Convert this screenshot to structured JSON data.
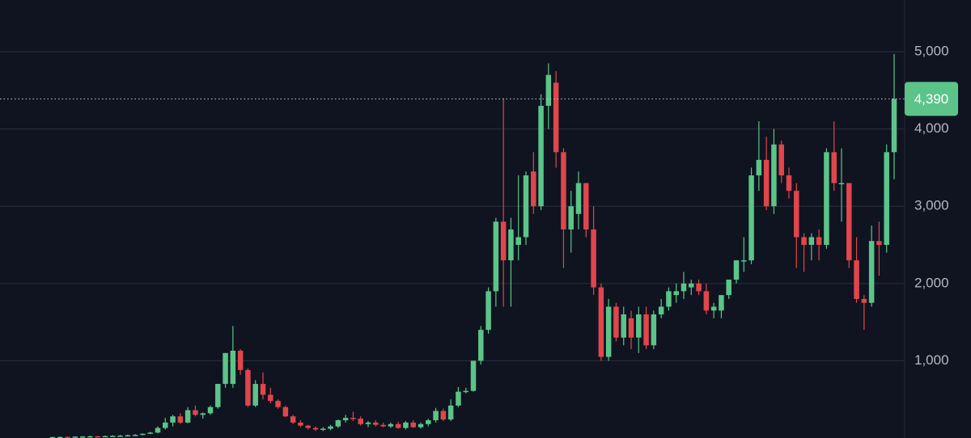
{
  "chart_data": {
    "type": "candlestick",
    "ylim": [
      0,
      5670
    ],
    "yticks": [
      {
        "value": 1000,
        "label": "1,000"
      },
      {
        "value": 2000,
        "label": "2,000"
      },
      {
        "value": 3000,
        "label": "3,000"
      },
      {
        "value": 4000,
        "label": "4,000"
      },
      {
        "value": 5000,
        "label": "5,000"
      }
    ],
    "grid": true,
    "up_color": "#5cc489",
    "down_color": "#e0464c",
    "last_price": {
      "value": 4390,
      "label": "4,390"
    },
    "values": [
      [
        10,
        15,
        8,
        12
      ],
      [
        12,
        18,
        10,
        14
      ],
      [
        14,
        20,
        12,
        13
      ],
      [
        13,
        22,
        12,
        18
      ],
      [
        18,
        25,
        15,
        20
      ],
      [
        20,
        30,
        18,
        22
      ],
      [
        22,
        28,
        18,
        20
      ],
      [
        20,
        30,
        18,
        25
      ],
      [
        25,
        35,
        22,
        28
      ],
      [
        28,
        40,
        25,
        30
      ],
      [
        30,
        45,
        26,
        35
      ],
      [
        35,
        50,
        30,
        40
      ],
      [
        40,
        60,
        35,
        55
      ],
      [
        55,
        80,
        50,
        70
      ],
      [
        70,
        150,
        60,
        130
      ],
      [
        130,
        260,
        110,
        200
      ],
      [
        200,
        300,
        150,
        280
      ],
      [
        280,
        320,
        180,
        200
      ],
      [
        200,
        400,
        190,
        360
      ],
      [
        360,
        420,
        280,
        300
      ],
      [
        300,
        330,
        250,
        320
      ],
      [
        320,
        420,
        300,
        400
      ],
      [
        400,
        700,
        380,
        700
      ],
      [
        700,
        1100,
        650,
        1100
      ],
      [
        700,
        1450,
        650,
        1130
      ],
      [
        1130,
        1150,
        820,
        880
      ],
      [
        880,
        900,
        400,
        420
      ],
      [
        420,
        750,
        400,
        700
      ],
      [
        700,
        850,
        500,
        560
      ],
      [
        560,
        650,
        450,
        480
      ],
      [
        480,
        500,
        380,
        400
      ],
      [
        400,
        420,
        270,
        280
      ],
      [
        280,
        300,
        180,
        200
      ],
      [
        200,
        230,
        140,
        160
      ],
      [
        160,
        170,
        110,
        130
      ],
      [
        130,
        150,
        90,
        110
      ],
      [
        110,
        140,
        90,
        120
      ],
      [
        120,
        170,
        100,
        150
      ],
      [
        150,
        240,
        130,
        230
      ],
      [
        230,
        300,
        200,
        260
      ],
      [
        260,
        340,
        220,
        250
      ],
      [
        250,
        280,
        160,
        180
      ],
      [
        180,
        220,
        140,
        200
      ],
      [
        200,
        230,
        150,
        170
      ],
      [
        170,
        200,
        140,
        150
      ],
      [
        150,
        200,
        130,
        180
      ],
      [
        180,
        210,
        120,
        130
      ],
      [
        130,
        220,
        110,
        200
      ],
      [
        200,
        230,
        130,
        140
      ],
      [
        140,
        200,
        120,
        180
      ],
      [
        180,
        250,
        150,
        230
      ],
      [
        230,
        390,
        200,
        350
      ],
      [
        350,
        380,
        220,
        240
      ],
      [
        240,
        500,
        220,
        420
      ],
      [
        420,
        660,
        400,
        600
      ],
      [
        600,
        650,
        580,
        610
      ],
      [
        610,
        1000,
        600,
        1000
      ],
      [
        1000,
        1450,
        950,
        1400
      ],
      [
        1400,
        1950,
        1350,
        1900
      ],
      [
        1900,
        2850,
        1700,
        2800
      ],
      [
        2800,
        4400,
        1700,
        2300
      ],
      [
        2300,
        2850,
        1700,
        2700
      ],
      [
        2500,
        3400,
        2300,
        2600
      ],
      [
        2600,
        3450,
        2500,
        3400
      ],
      [
        3450,
        3700,
        2900,
        3000
      ],
      [
        3000,
        4450,
        2950,
        4300
      ],
      [
        4300,
        4850,
        4000,
        4700
      ],
      [
        4600,
        4750,
        3500,
        3700
      ],
      [
        3700,
        3750,
        2200,
        2700
      ],
      [
        2700,
        3200,
        2400,
        3000
      ],
      [
        2900,
        3450,
        2700,
        3300
      ],
      [
        3300,
        3300,
        2600,
        2700
      ],
      [
        2700,
        3000,
        1850,
        1950
      ],
      [
        1950,
        2000,
        1000,
        1050
      ],
      [
        1050,
        1800,
        1000,
        1700
      ],
      [
        1700,
        1750,
        1250,
        1300
      ],
      [
        1300,
        1700,
        1200,
        1600
      ],
      [
        1550,
        1650,
        1150,
        1300
      ],
      [
        1300,
        1700,
        1100,
        1600
      ],
      [
        1600,
        1700,
        1150,
        1200
      ],
      [
        1200,
        1650,
        1150,
        1600
      ],
      [
        1600,
        1800,
        1550,
        1700
      ],
      [
        1700,
        1950,
        1650,
        1900
      ],
      [
        1850,
        2000,
        1750,
        1900
      ],
      [
        1900,
        2150,
        1800,
        2000
      ],
      [
        1950,
        2050,
        1850,
        2000
      ],
      [
        2000,
        2050,
        1850,
        1900
      ],
      [
        1900,
        2000,
        1600,
        1650
      ],
      [
        1650,
        1750,
        1550,
        1700
      ],
      [
        1650,
        1850,
        1550,
        1850
      ],
      [
        1850,
        2050,
        1800,
        2050
      ],
      [
        2050,
        2300,
        2000,
        2300
      ],
      [
        2300,
        2600,
        2150,
        2300
      ],
      [
        2300,
        3500,
        2250,
        3400
      ],
      [
        3400,
        4100,
        3200,
        3600
      ],
      [
        3600,
        3900,
        2950,
        3000
      ],
      [
        3000,
        4000,
        2900,
        3800
      ],
      [
        3800,
        3850,
        3300,
        3400
      ],
      [
        3400,
        3500,
        3100,
        3200
      ],
      [
        3200,
        3300,
        2200,
        2600
      ],
      [
        2600,
        2650,
        2150,
        2500
      ],
      [
        2500,
        2650,
        2300,
        2600
      ],
      [
        2600,
        2700,
        2300,
        2500
      ],
      [
        2500,
        3750,
        2450,
        3700
      ],
      [
        3700,
        4100,
        3200,
        3300
      ],
      [
        3300,
        3750,
        2800,
        3300
      ],
      [
        3300,
        3300,
        2200,
        2300
      ],
      [
        2300,
        2600,
        1750,
        1800
      ],
      [
        1800,
        1850,
        1400,
        1750
      ],
      [
        1750,
        2750,
        1700,
        2550
      ],
      [
        2550,
        2800,
        2100,
        2500
      ],
      [
        2500,
        3800,
        2400,
        3700
      ],
      [
        3700,
        4970,
        3350,
        4390
      ]
    ]
  }
}
